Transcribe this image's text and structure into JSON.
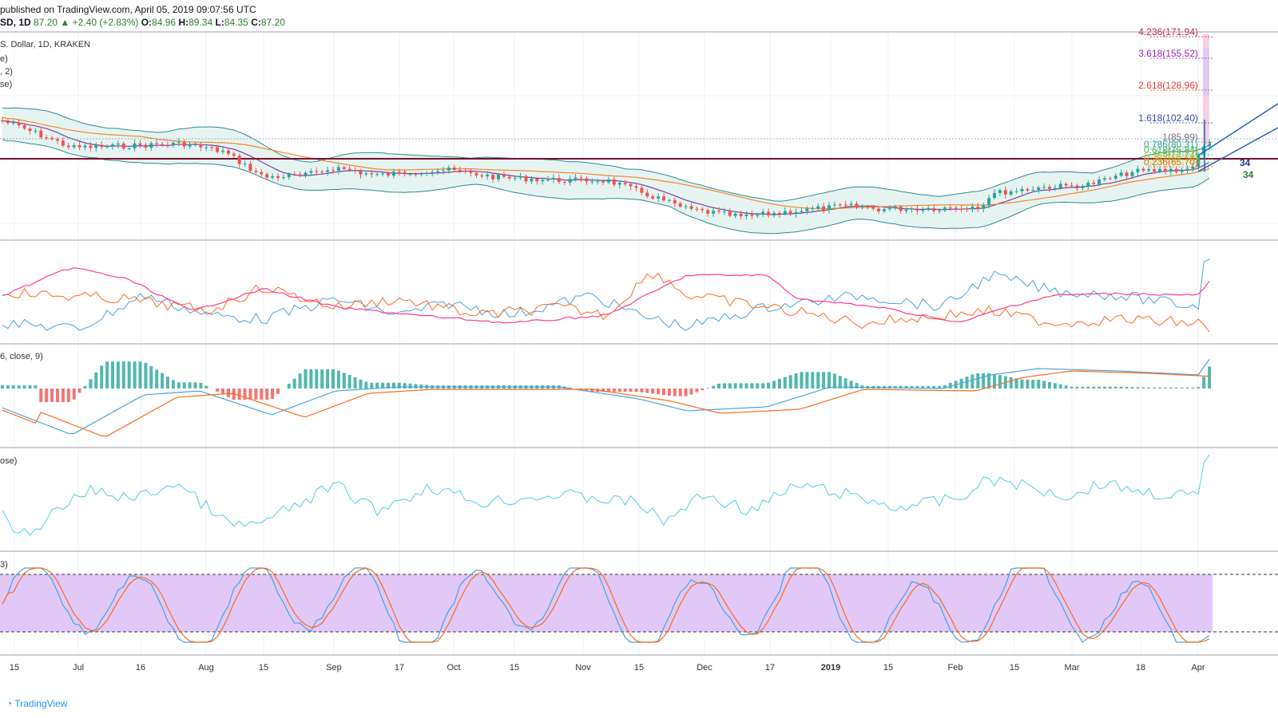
{
  "header": {
    "published": "published on TradingView.com, April 05, 2019 09:07:56 UTC",
    "symbol": "SD, 1D",
    "last": "87.20",
    "change_arrow": "▲",
    "change": "+2.40 (+2.83%)",
    "o_label": "O:",
    "o": "84.96",
    "h_label": "H:",
    "h": "89.34",
    "l_label": "L:",
    "l": "84.35",
    "c_label": "C:",
    "c": "87.20"
  },
  "legend": {
    "main_title": "S. Dollar, 1D, KRAKEN",
    "line2": "e)",
    "line3": ", 2)",
    "line4": "se)",
    "macd": "6, close, 9)",
    "rsi": "ose)",
    "stoch": "3)"
  },
  "fib_levels": [
    {
      "label": "4.236(171.94)",
      "color": "#c2185b"
    },
    {
      "label": "3.618(155.52)",
      "color": "#9c27b0"
    },
    {
      "label": "2.618(128.96)",
      "color": "#e53935"
    },
    {
      "label": "1.618(102.40)",
      "color": "#3949ab"
    },
    {
      "label": "1(85.99)",
      "color": "#757575"
    },
    {
      "label": "0.786(80.31)",
      "color": "#26a69a"
    },
    {
      "label": "0.618(75.84)",
      "color": "#4caf50"
    },
    {
      "label": "0.5(72.71)",
      "color": "#7cb342"
    },
    {
      "label": "0.382(69.58)",
      "color": "#c0ca33"
    },
    {
      "label": "0.236(65.70)",
      "color": "#ef6c00"
    }
  ],
  "right_labels": {
    "a": "34",
    "b": "34"
  },
  "x_axis": [
    "15",
    "Jul",
    "16",
    "Aug",
    "15",
    "Sep",
    "17",
    "Oct",
    "15",
    "Nov",
    "15",
    "Dec",
    "17",
    "2019",
    "15",
    "Feb",
    "15",
    "Mar",
    "18",
    "Apr"
  ],
  "footer": "TradingView",
  "colors": {
    "up": "#26a69a",
    "down": "#ef5350",
    "bb": "#2b8c8c",
    "bb_fill": "#e6f4f1",
    "sma_fast": "#7b3fa0",
    "sma_slow": "#f4842b",
    "level": "#7b1030",
    "dmi_pos": "#4aa3df",
    "dmi_neg": "#ff6a1a",
    "adx": "#ff3b8b",
    "rsi": "#4dd0e1",
    "stoch_fill": "#e1c8f7"
  },
  "chart_data": {
    "type": "line",
    "title": "",
    "x": [
      "15",
      "Jul",
      "16",
      "Aug",
      "15",
      "Sep",
      "17",
      "Oct",
      "15",
      "Nov",
      "15",
      "Dec",
      "17",
      "2019",
      "15",
      "Feb",
      "15",
      "Mar",
      "18",
      "Apr"
    ],
    "series": [
      {
        "values": [
          115,
          104,
          102,
          101,
          94,
          86,
          85,
          84,
          82,
          81,
          78,
          67,
          60,
          55,
          58,
          58,
          64,
          68,
          72,
          76
        ]
      }
    ]
  }
}
